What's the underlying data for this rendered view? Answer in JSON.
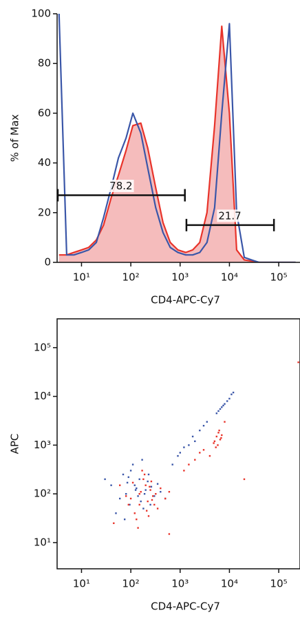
{
  "chart_data": [
    {
      "type": "line",
      "ylabel": "% of Max",
      "xlabel": "CD4-APC-Cy7",
      "xscale": "log",
      "xlim": [
        3.2,
        270000
      ],
      "ylim": [
        0,
        100
      ],
      "xticks": [
        {
          "value": 10,
          "label": "10¹"
        },
        {
          "value": 100,
          "label": "10²"
        },
        {
          "value": 1000,
          "label": "10³"
        },
        {
          "value": 10000,
          "label": "10⁴"
        },
        {
          "value": 100000,
          "label": "10⁵"
        }
      ],
      "yticks": [
        0,
        20,
        40,
        60,
        80,
        100
      ],
      "x": [
        3.5,
        5,
        7,
        10,
        14,
        20,
        28,
        40,
        56,
        80,
        110,
        160,
        220,
        320,
        450,
        630,
        900,
        1300,
        1800,
        2500,
        3500,
        5000,
        7000,
        10000,
        14000,
        20000,
        28000,
        40000,
        56000,
        80000,
        110000,
        160000,
        220000
      ],
      "series": [
        {
          "color": "#e8332a",
          "fill": "#f5bcbc",
          "values": [
            3,
            3,
            4,
            5,
            6,
            9,
            15,
            26,
            35,
            45,
            55,
            56,
            46,
            30,
            16,
            8,
            5,
            4,
            5,
            8,
            20,
            55,
            95,
            60,
            5,
            1,
            0.5,
            0,
            0,
            0,
            0,
            0,
            0
          ]
        },
        {
          "color": "#3a56a8",
          "values": [
            100,
            3,
            3,
            4,
            5,
            8,
            18,
            30,
            42,
            50,
            60,
            52,
            38,
            22,
            12,
            6,
            4,
            3,
            3,
            4,
            8,
            22,
            60,
            96,
            20,
            2,
            1,
            0,
            0,
            0,
            0,
            0,
            0
          ]
        }
      ],
      "gates": [
        {
          "label": 78.2,
          "x": [
            3.2,
            1250
          ],
          "y": 27
        },
        {
          "label": 21.7,
          "x": [
            1300,
            80000
          ],
          "y": 15
        }
      ]
    },
    {
      "type": "scatter",
      "ylabel": "APC",
      "xlabel": "CD4-APC-Cy7",
      "xscale": "log",
      "yscale": "log",
      "xlim": [
        3.2,
        270000
      ],
      "ylim": [
        2.9,
        390000
      ],
      "xticks": [
        {
          "value": 10,
          "label": "10¹"
        },
        {
          "value": 100,
          "label": "10²"
        },
        {
          "value": 1000,
          "label": "10³"
        },
        {
          "value": 10000,
          "label": "10⁴"
        },
        {
          "value": 100000,
          "label": "10⁵"
        }
      ],
      "yticks": [
        {
          "value": 10,
          "label": "10¹"
        },
        {
          "value": 100,
          "label": "10²"
        },
        {
          "value": 1000,
          "label": "10³"
        },
        {
          "value": 10000,
          "label": "10⁴"
        },
        {
          "value": 100000,
          "label": "10⁵"
        }
      ],
      "series": [
        {
          "color": "#3a56a8",
          "x": [
            120,
            80,
            200,
            150,
            60,
            300,
            100,
            250,
            40,
            180,
            90,
            130,
            400,
            70,
            220,
            160,
            50,
            110,
            350,
            140,
            95,
            260,
            75,
            190,
            30,
            500,
            170,
            125,
            85,
            230,
            700,
            1000,
            1500,
            2000,
            2500,
            3000,
            3500,
            900,
            1200,
            1800,
            6000,
            7000,
            8000,
            9000,
            10000,
            12000,
            5500,
            6500,
            7500,
            11000
          ],
          "y": [
            150,
            100,
            120,
            200,
            80,
            90,
            300,
            60,
            150,
            50,
            220,
            130,
            110,
            250,
            180,
            70,
            40,
            400,
            160,
            90,
            60,
            140,
            30,
            100,
            200,
            80,
            500,
            120,
            170,
            250,
            400,
            700,
            1000,
            1200,
            2000,
            2500,
            3000,
            600,
            900,
            1500,
            5000,
            6000,
            7000,
            8000,
            9000,
            12000,
            4500,
            5500,
            6500,
            11000
          ]
        },
        {
          "color": "#e8332a",
          "x": [
            150,
            200,
            100,
            250,
            300,
            180,
            120,
            80,
            400,
            220,
            160,
            350,
            60,
            130,
            280,
            190,
            500,
            140,
            110,
            240,
            90,
            320,
            170,
            210,
            260,
            45,
            600,
            230,
            150,
            270,
            1200,
            2000,
            3000,
            1500,
            2500,
            5000,
            5500,
            6000,
            6500,
            7000,
            5800,
            6200,
            4800,
            6800,
            5300,
            8000,
            250000,
            600,
            20000,
            4000
          ],
          "y": [
            100,
            150,
            80,
            120,
            60,
            200,
            40,
            90,
            130,
            70,
            110,
            50,
            150,
            30,
            90,
            250,
            80,
            20,
            170,
            140,
            60,
            100,
            300,
            45,
            180,
            25,
            110,
            35,
            60,
            75,
            300,
            500,
            800,
            400,
            700,
            1200,
            1500,
            1800,
            1300,
            1600,
            1000,
            2000,
            1100,
            1400,
            900,
            3000,
            50000,
            15,
            200,
            600
          ]
        }
      ]
    }
  ]
}
